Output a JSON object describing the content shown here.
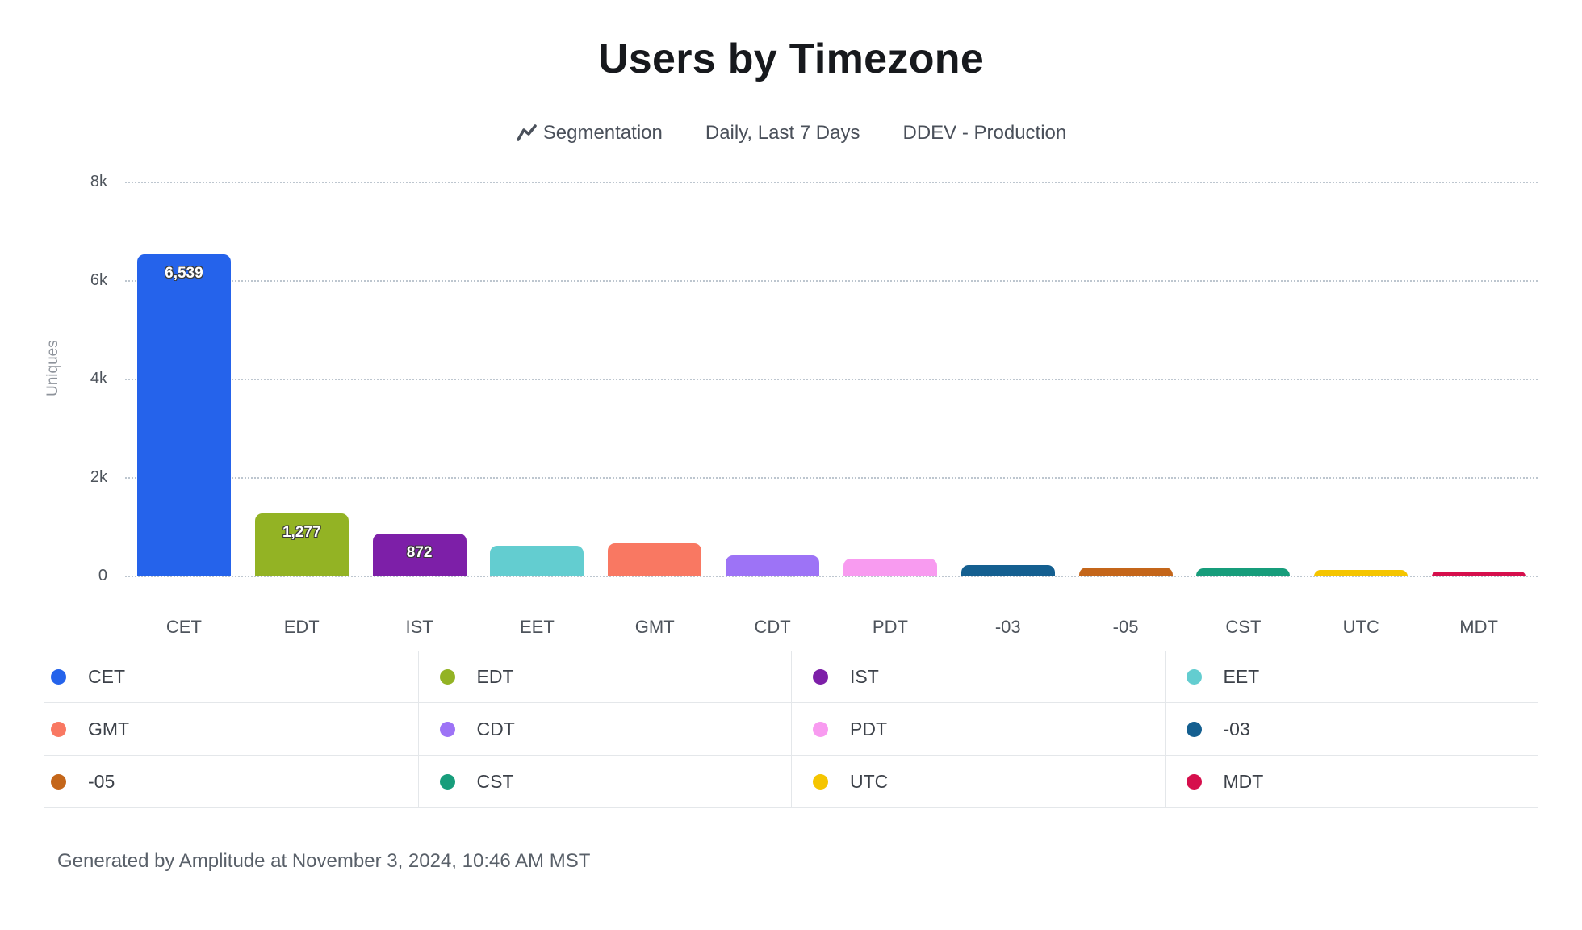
{
  "header": {
    "title": "Users by Timezone",
    "subtitle": {
      "chart_type": "Segmentation",
      "date_range": "Daily, Last 7 Days",
      "project": "DDEV - Production"
    }
  },
  "chart_data": {
    "type": "bar",
    "title": "Users by Timezone",
    "xlabel": "",
    "ylabel": "Uniques",
    "ylim": [
      0,
      8000
    ],
    "grid": "horizontal dotted",
    "legend_position": "bottom",
    "yticks": [
      {
        "value": 0,
        "label": "0"
      },
      {
        "value": 2000,
        "label": "2k"
      },
      {
        "value": 4000,
        "label": "4k"
      },
      {
        "value": 6000,
        "label": "6k"
      },
      {
        "value": 8000,
        "label": "8k"
      }
    ],
    "categories": [
      "CET",
      "EDT",
      "IST",
      "EET",
      "GMT",
      "CDT",
      "PDT",
      "-03",
      "-05",
      "CST",
      "UTC",
      "MDT"
    ],
    "values": [
      6539,
      1277,
      872,
      620,
      670,
      430,
      360,
      230,
      180,
      170,
      130,
      100
    ],
    "value_labels": [
      "6,539",
      "1,277",
      "872",
      "",
      "",
      "",
      "",
      "",
      "",
      "",
      "",
      ""
    ],
    "colors": [
      "#2563eb",
      "#93b324",
      "#7d1fa8",
      "#63cdd0",
      "#f97862",
      "#9d73f6",
      "#f89bf0",
      "#145f90",
      "#c4661a",
      "#179d7b",
      "#f5c500",
      "#d60f4c"
    ]
  },
  "legend": {
    "items": [
      {
        "label": "CET",
        "color": "#2563eb"
      },
      {
        "label": "EDT",
        "color": "#93b324"
      },
      {
        "label": "IST",
        "color": "#7d1fa8"
      },
      {
        "label": "EET",
        "color": "#63cdd0"
      },
      {
        "label": "GMT",
        "color": "#f97862"
      },
      {
        "label": "CDT",
        "color": "#9d73f6"
      },
      {
        "label": "PDT",
        "color": "#f89bf0"
      },
      {
        "label": "-03",
        "color": "#145f90"
      },
      {
        "label": "-05",
        "color": "#c4661a"
      },
      {
        "label": "CST",
        "color": "#179d7b"
      },
      {
        "label": "UTC",
        "color": "#f5c500"
      },
      {
        "label": "MDT",
        "color": "#d60f4c"
      }
    ]
  },
  "footer": {
    "text": "Generated by Amplitude at November 3, 2024, 10:46 AM MST"
  }
}
